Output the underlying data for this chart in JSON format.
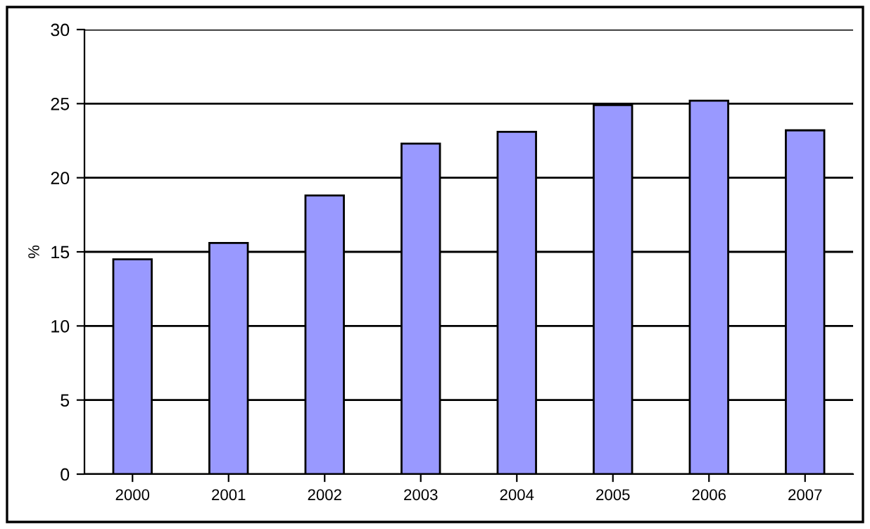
{
  "chart_data": {
    "type": "bar",
    "ylabel": "%",
    "categories": [
      "2000",
      "2001",
      "2002",
      "2003",
      "2004",
      "2005",
      "2006",
      "2007"
    ],
    "values": [
      14.5,
      15.6,
      18.8,
      22.3,
      23.1,
      24.9,
      25.2,
      23.2
    ],
    "color": "#9999ff",
    "ylim": [
      0,
      30
    ],
    "yticks": [
      0,
      5,
      10,
      15,
      20,
      25,
      30
    ],
    "grid": "y",
    "legend": false
  }
}
